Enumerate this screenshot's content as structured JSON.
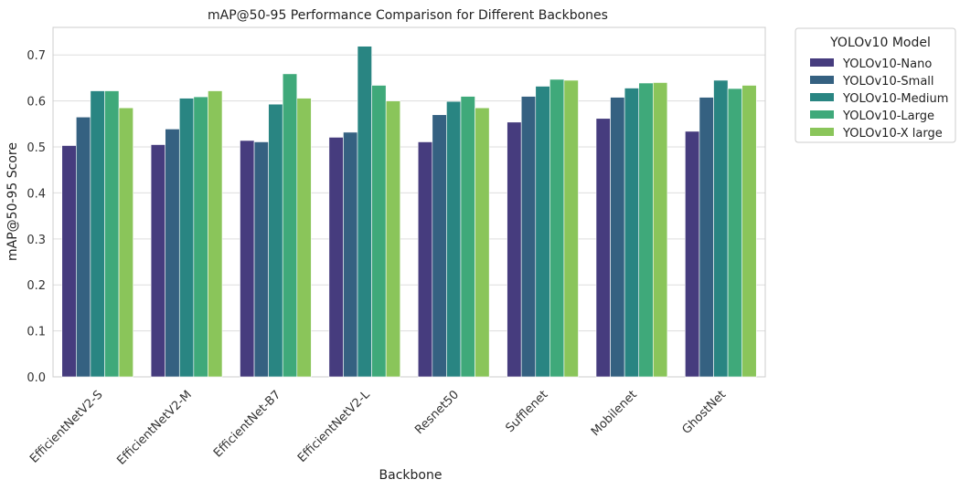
{
  "chart_data": {
    "type": "bar",
    "title": "mAP@50-95 Performance Comparison for Different Backbones",
    "xlabel": "Backbone",
    "ylabel": "mAP@50-95 Score",
    "ylim": [
      0,
      0.76
    ],
    "yticks": [
      0.0,
      0.1,
      0.2,
      0.3,
      0.4,
      0.5,
      0.6,
      0.7
    ],
    "ytick_labels": [
      "0.0",
      "0.1",
      "0.2",
      "0.3",
      "0.4",
      "0.5",
      "0.6",
      "0.7"
    ],
    "grid": true,
    "legend_title": "YOLOv10 Model",
    "legend_position": "outside-top-right",
    "categories": [
      "EfficientNetV2-S",
      "EfficientNetV2-M",
      "EfficientNet-B7",
      "EfficientNetV2-L",
      "Resnet50",
      "Sufflenet",
      "Mobilenet",
      "GhostNet"
    ],
    "series": [
      {
        "name": "YOLOv10-Nano",
        "color": "#463c7e",
        "values": [
          0.503,
          0.505,
          0.514,
          0.521,
          0.511,
          0.554,
          0.562,
          0.534
        ]
      },
      {
        "name": "YOLOv10-Small",
        "color": "#356181",
        "values": [
          0.565,
          0.539,
          0.511,
          0.532,
          0.57,
          0.61,
          0.608,
          0.608
        ]
      },
      {
        "name": "YOLOv10-Medium",
        "color": "#298582",
        "values": [
          0.622,
          0.606,
          0.593,
          0.719,
          0.599,
          0.632,
          0.628,
          0.645
        ]
      },
      {
        "name": "YOLOv10-Large",
        "color": "#3fa97a",
        "values": [
          0.622,
          0.609,
          0.659,
          0.634,
          0.61,
          0.647,
          0.639,
          0.627
        ]
      },
      {
        "name": "YOLOv10-X large",
        "color": "#8ac55a",
        "values": [
          0.585,
          0.622,
          0.606,
          0.6,
          0.585,
          0.645,
          0.64,
          0.634
        ]
      }
    ]
  }
}
